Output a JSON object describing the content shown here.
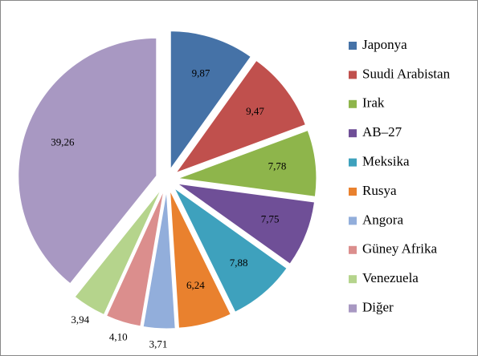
{
  "chart_data": {
    "type": "pie",
    "categories": [
      "Japonya",
      "Suudi Arabistan",
      "Irak",
      "AB–27",
      "Meksika",
      "Rusya",
      "Angora",
      "Güney Afrika",
      "Venezuela",
      "Diğer"
    ],
    "values": [
      9.87,
      9.47,
      7.78,
      7.75,
      7.88,
      6.24,
      3.71,
      4.1,
      3.94,
      39.26
    ],
    "value_labels": [
      "9,87",
      "9,47",
      "7,78",
      "7,75",
      "7,88",
      "6,24",
      "3,71",
      "4,10",
      "3,94",
      "39,26"
    ],
    "colors": [
      "#4572a7",
      "#c0504d",
      "#8eb54b",
      "#6f4f97",
      "#3ea1bd",
      "#e9812e",
      "#92aedb",
      "#db8e8d",
      "#b5d48c",
      "#a898c2"
    ],
    "legend": "right"
  }
}
